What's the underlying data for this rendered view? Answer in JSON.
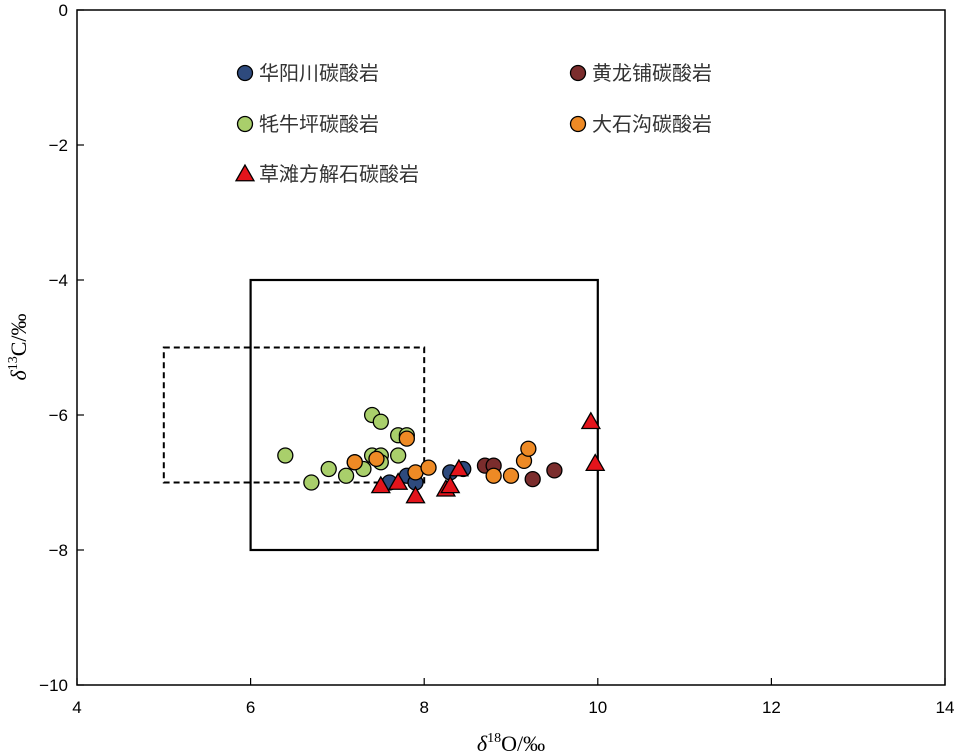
{
  "chart_data": {
    "type": "scatter",
    "xlabel": {
      "symbol": "δ",
      "sup": "18",
      "rest": "O/‰"
    },
    "ylabel": {
      "symbol": "δ",
      "sup": "13",
      "rest": "C/‰"
    },
    "xlim": [
      4,
      14
    ],
    "ylim": [
      -10,
      0
    ],
    "xticks": [
      "4",
      "6",
      "8",
      "10",
      "12",
      "14"
    ],
    "yticks": [
      "0",
      "−2",
      "−4",
      "−6",
      "−8",
      "−10"
    ],
    "grid": false,
    "legend_position": "top",
    "series": [
      {
        "name": "华阳川碳酸岩",
        "marker": "circle",
        "color": "#2e4a7d",
        "points": [
          [
            7.6,
            -7.0
          ],
          [
            7.8,
            -6.9
          ],
          [
            7.9,
            -7.0
          ],
          [
            8.3,
            -6.85
          ],
          [
            8.45,
            -6.8
          ]
        ]
      },
      {
        "name": "黄龙铺碳酸岩",
        "marker": "circle",
        "color": "#7b2d2d",
        "points": [
          [
            8.7,
            -6.75
          ],
          [
            8.8,
            -6.75
          ],
          [
            9.25,
            -6.95
          ],
          [
            9.5,
            -6.82
          ]
        ]
      },
      {
        "name": "牦牛坪碳酸岩",
        "marker": "circle",
        "color": "#a9cf6b",
        "points": [
          [
            6.4,
            -6.6
          ],
          [
            6.7,
            -7.0
          ],
          [
            6.9,
            -6.8
          ],
          [
            7.1,
            -6.9
          ],
          [
            7.2,
            -6.7
          ],
          [
            7.3,
            -6.8
          ],
          [
            7.4,
            -6.0
          ],
          [
            7.4,
            -6.6
          ],
          [
            7.5,
            -6.1
          ],
          [
            7.5,
            -6.6
          ],
          [
            7.5,
            -6.7
          ],
          [
            7.7,
            -6.3
          ],
          [
            7.7,
            -6.6
          ],
          [
            7.8,
            -6.3
          ]
        ]
      },
      {
        "name": "大石沟碳酸岩",
        "marker": "circle",
        "color": "#ee8a25",
        "points": [
          [
            7.2,
            -6.7
          ],
          [
            7.45,
            -6.65
          ],
          [
            7.8,
            -6.35
          ],
          [
            7.9,
            -6.85
          ],
          [
            8.05,
            -6.78
          ],
          [
            8.8,
            -6.9
          ],
          [
            9.0,
            -6.9
          ],
          [
            9.15,
            -6.68
          ],
          [
            9.2,
            -6.5
          ]
        ]
      },
      {
        "name": "草滩方解石碳酸岩",
        "marker": "triangle",
        "color": "#e3141b",
        "points": [
          [
            7.5,
            -7.05
          ],
          [
            7.7,
            -7.0
          ],
          [
            7.9,
            -7.2
          ],
          [
            8.25,
            -7.1
          ],
          [
            8.3,
            -7.05
          ],
          [
            8.4,
            -6.8
          ],
          [
            9.92,
            -6.1
          ],
          [
            9.97,
            -6.72
          ]
        ]
      }
    ],
    "annotations": [
      {
        "type": "rect",
        "style": "solid",
        "x": [
          6,
          10
        ],
        "y": [
          -8,
          -4
        ]
      },
      {
        "type": "rect",
        "style": "dashed",
        "x": [
          5,
          8
        ],
        "y": [
          -7,
          -5
        ]
      }
    ]
  }
}
